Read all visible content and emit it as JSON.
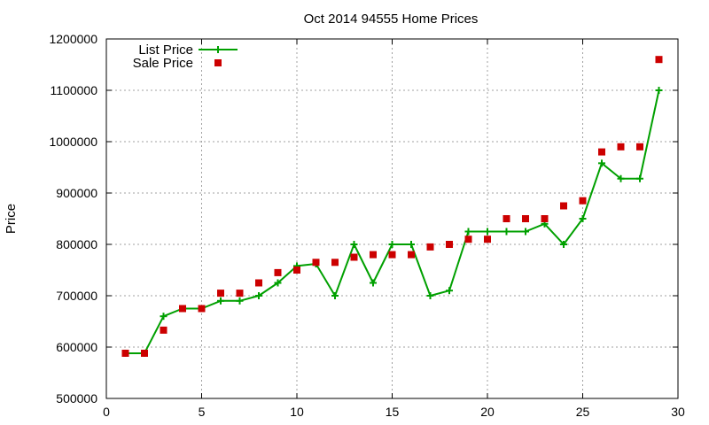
{
  "chart_data": {
    "type": "line",
    "title": "Oct 2014 94555 Home Prices",
    "xlabel": "",
    "ylabel": "Price",
    "xlim": [
      0,
      30
    ],
    "ylim": [
      500000,
      1200000
    ],
    "xticks": [
      0,
      5,
      10,
      15,
      20,
      25,
      30
    ],
    "yticks": [
      500000,
      600000,
      700000,
      800000,
      900000,
      1000000,
      1100000,
      1200000
    ],
    "grid": true,
    "legend_position": "top-left",
    "series": [
      {
        "name": "List Price",
        "style": "linespoints",
        "color": "#00a000",
        "x": [
          1,
          2,
          3,
          4,
          5,
          6,
          7,
          8,
          9,
          10,
          11,
          12,
          13,
          14,
          15,
          16,
          17,
          18,
          19,
          20,
          21,
          22,
          23,
          24,
          25,
          26,
          27,
          28,
          29
        ],
        "y": [
          588000,
          588000,
          660000,
          675000,
          675000,
          690000,
          690000,
          700000,
          725000,
          758000,
          762000,
          700000,
          800000,
          725000,
          800000,
          800000,
          700000,
          710000,
          825000,
          825000,
          825000,
          825000,
          840000,
          800000,
          850000,
          958000,
          928000,
          928000,
          1100000
        ]
      },
      {
        "name": "Sale Price",
        "style": "points",
        "color": "#cc0000",
        "x": [
          1,
          2,
          3,
          4,
          5,
          6,
          7,
          8,
          9,
          10,
          11,
          12,
          13,
          14,
          15,
          16,
          17,
          18,
          19,
          20,
          21,
          22,
          23,
          24,
          25,
          26,
          27,
          28,
          29
        ],
        "y": [
          588000,
          588000,
          633000,
          675000,
          675000,
          705000,
          705000,
          725000,
          745000,
          750000,
          765000,
          765000,
          775000,
          780000,
          780000,
          780000,
          795000,
          800000,
          810000,
          810000,
          850000,
          850000,
          850000,
          875000,
          885000,
          980000,
          990000,
          990000,
          1160000
        ]
      }
    ]
  }
}
